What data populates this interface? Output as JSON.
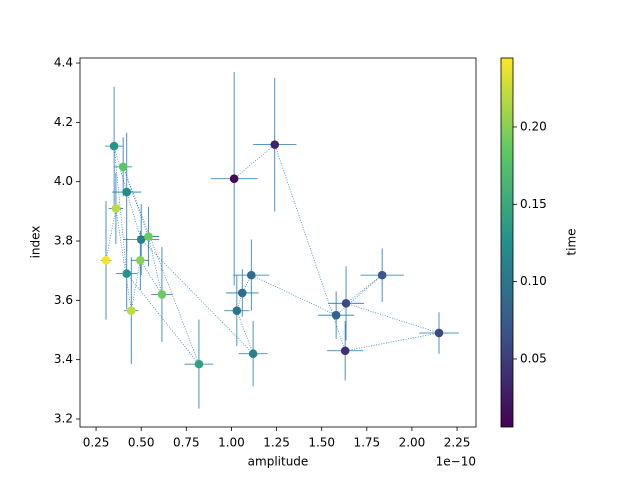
{
  "chart_data": {
    "type": "scatter",
    "xlabel": "amplitude",
    "ylabel": "index",
    "x_offset_label": "1e−10",
    "x": [
      1.015,
      1.24,
      1.63,
      2.15,
      1.635,
      1.835,
      1.58,
      1.11,
      1.06,
      1.03,
      1.12,
      0.5,
      0.42,
      0.35,
      0.42,
      0.82,
      0.4,
      0.54,
      0.615,
      0.495,
      0.445,
      0.36,
      0.305
    ],
    "y": [
      4.01,
      4.125,
      3.43,
      3.49,
      3.59,
      3.685,
      3.55,
      3.685,
      3.625,
      3.565,
      3.42,
      3.805,
      3.965,
      4.12,
      3.69,
      3.385,
      4.05,
      3.815,
      3.62,
      3.735,
      3.565,
      3.91,
      3.735
    ],
    "xerr": [
      0.13,
      0.12,
      0.1,
      0.11,
      0.1,
      0.12,
      0.1,
      0.1,
      0.09,
      0.07,
      0.08,
      0.1,
      0.08,
      0.05,
      0.06,
      0.08,
      0.05,
      0.06,
      0.06,
      0.05,
      0.04,
      0.04,
      0.03
    ],
    "yerr": [
      0.36,
      0.225,
      0.1,
      0.07,
      0.125,
      0.09,
      0.08,
      0.12,
      0.08,
      0.12,
      0.11,
      0.12,
      0.2,
      0.2,
      0.12,
      0.15,
      0.1,
      0.1,
      0.16,
      0.1,
      0.18,
      0.12,
      0.2
    ],
    "time": [
      0.01,
      0.03,
      0.04,
      0.06,
      0.06,
      0.07,
      0.08,
      0.09,
      0.09,
      0.1,
      0.11,
      0.11,
      0.12,
      0.13,
      0.13,
      0.14,
      0.18,
      0.19,
      0.19,
      0.2,
      0.22,
      0.22,
      0.24
    ],
    "xlim": [
      0.161,
      2.355
    ],
    "ylim": [
      3.173,
      4.417
    ],
    "xticks": [
      {
        "value": 0.25,
        "label": "0.25"
      },
      {
        "value": 0.5,
        "label": "0.50"
      },
      0.75,
      {
        "value": 1,
        "label": "1.00"
      },
      1.25,
      {
        "value": 1.5,
        "label": "1.50"
      },
      1.75,
      {
        "value": 2,
        "label": "2.00"
      },
      2.25
    ],
    "yticks": [
      3.2,
      3.4,
      3.6,
      3.8,
      {
        "value": 4,
        "label": "4.0"
      },
      4.2,
      4.4
    ],
    "errorbar_color": "#1f77b4",
    "colormap": [
      "#440154",
      "#3b528b",
      "#21918c",
      "#5ec962",
      "#fde725"
    ],
    "colorbar": {
      "label": "time",
      "lim": [
        0.006,
        0.2446
      ],
      "ticks": [
        0.05,
        {
          "value": 0.1,
          "label": "0.10"
        },
        0.15,
        {
          "value": 0.2,
          "label": "0.20"
        }
      ]
    }
  }
}
